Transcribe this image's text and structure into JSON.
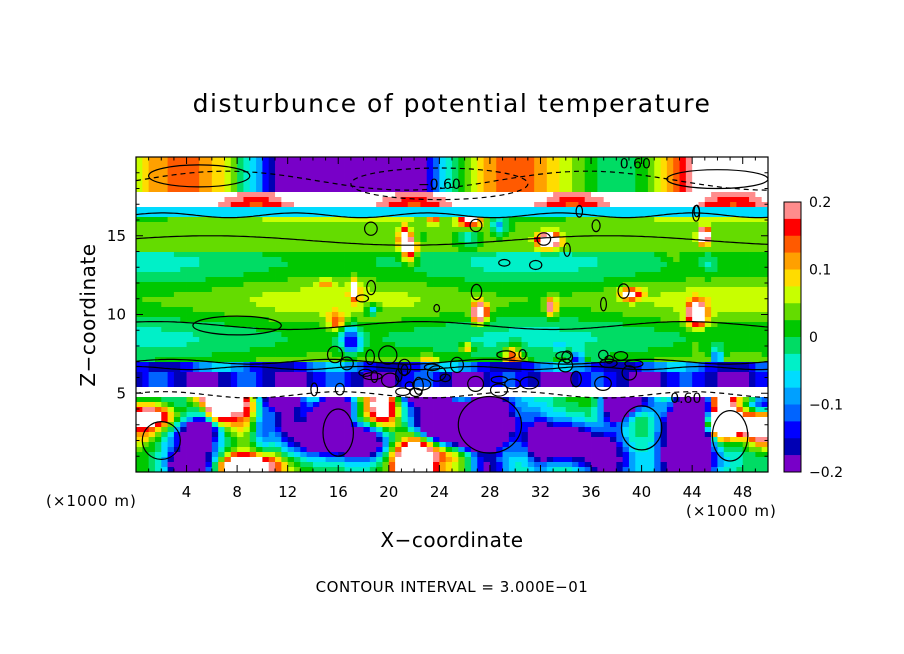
{
  "chart_data": {
    "type": "heatmap",
    "title": "disturbunce of potential temperature",
    "xlabel": "X−coordinate",
    "ylabel": "Z−coordinate",
    "x_unit_label": "(×1000 m)",
    "y_unit_label": "(×1000 m)",
    "xlim": [
      0,
      50
    ],
    "ylim": [
      0,
      20
    ],
    "x_ticks": [
      4,
      8,
      12,
      16,
      20,
      24,
      28,
      32,
      36,
      40,
      44,
      48
    ],
    "x_tick_labels": [
      "4",
      "8",
      "12",
      "16",
      "20",
      "24",
      "28",
      "32",
      "36",
      "40",
      "44",
      "48"
    ],
    "y_ticks": [
      5,
      10,
      15
    ],
    "y_tick_labels": [
      "5",
      "10",
      "15"
    ],
    "colorbar": {
      "range": [
        -0.2,
        0.2
      ],
      "ticks": [
        0.2,
        0.1,
        0,
        -0.1,
        -0.2
      ],
      "tick_labels": [
        "0.2",
        "0.1",
        "0",
        "−0.1",
        "−0.2"
      ],
      "colors": [
        "#ff8c8c",
        "#ff0000",
        "#ff5a00",
        "#ffa000",
        "#ffdc00",
        "#c8ff00",
        "#64dc00",
        "#00c800",
        "#00dc64",
        "#00f0c8",
        "#00dcff",
        "#00a0ff",
        "#0064ff",
        "#0000ff",
        "#0000b4",
        "#7800c8"
      ]
    },
    "contour_labels": [
      {
        "text": "0.60",
        "x": 39.5,
        "z": 19.6
      },
      {
        "text": "−0.60",
        "x": 24.0,
        "z": 18.3
      },
      {
        "text": "0.60",
        "x": 43.5,
        "z": 4.7
      }
    ],
    "footer": "CONTOUR INTERVAL = 3.000E−01"
  }
}
